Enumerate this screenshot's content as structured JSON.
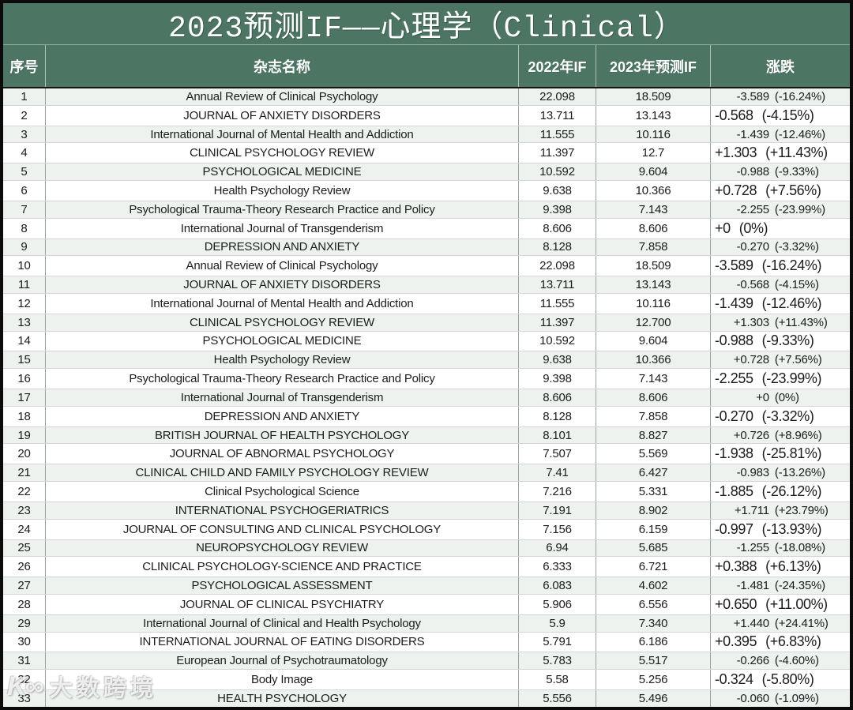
{
  "title": "2023预测IF——心理学（Clinical）",
  "header": {
    "index": "序号",
    "journal": "杂志名称",
    "if_2022": "2022年IF",
    "if_2023": "2023年预测IF",
    "change": "涨跌"
  },
  "watermark": {
    "logo": "K∞",
    "text": "大数跨境"
  },
  "colors": {
    "band_green": "#4c7564",
    "stripe": "#edf2ef",
    "outer_border": "#0b0b0b",
    "row_line": "#d2d7d4",
    "column_line": "#9ba3a0"
  },
  "row_fields": [
    "index",
    "journal_name",
    "if_2022",
    "if_2023_predicted",
    "change_value",
    "change_percent"
  ],
  "rows": [
    [
      "1",
      "Annual Review of Clinical Psychology",
      "22.098",
      "18.509",
      "-3.589",
      "(-16.24%)"
    ],
    [
      "2",
      "JOURNAL OF ANXIETY DISORDERS",
      "13.711",
      "13.143",
      "-0.568",
      "(-4.15%)"
    ],
    [
      "3",
      "International Journal of Mental Health and Addiction",
      "11.555",
      "10.116",
      "-1.439",
      "(-12.46%)"
    ],
    [
      "4",
      "CLINICAL PSYCHOLOGY REVIEW",
      "11.397",
      "12.7",
      "+1.303",
      "(+11.43%)"
    ],
    [
      "5",
      "PSYCHOLOGICAL MEDICINE",
      "10.592",
      "9.604",
      "-0.988",
      "(-9.33%)"
    ],
    [
      "6",
      "Health Psychology Review",
      "9.638",
      "10.366",
      "+0.728",
      "(+7.56%)"
    ],
    [
      "7",
      "Psychological Trauma-Theory Research Practice and Policy",
      "9.398",
      "7.143",
      "-2.255",
      "(-23.99%)"
    ],
    [
      "8",
      "International Journal of Transgenderism",
      "8.606",
      "8.606",
      "+0",
      "(0%)"
    ],
    [
      "9",
      "DEPRESSION AND ANXIETY",
      "8.128",
      "7.858",
      "-0.270",
      "(-3.32%)"
    ],
    [
      "10",
      "Annual Review of Clinical Psychology",
      "22.098",
      "18.509",
      "-3.589",
      "(-16.24%)"
    ],
    [
      "11",
      "JOURNAL OF ANXIETY DISORDERS",
      "13.711",
      "13.143",
      "-0.568",
      "(-4.15%)"
    ],
    [
      "12",
      "International Journal of Mental Health and Addiction",
      "11.555",
      "10.116",
      "-1.439",
      "(-12.46%)"
    ],
    [
      "13",
      "CLINICAL PSYCHOLOGY REVIEW",
      "11.397",
      "12.700",
      "+1.303",
      "(+11.43%)"
    ],
    [
      "14",
      "PSYCHOLOGICAL MEDICINE",
      "10.592",
      "9.604",
      "-0.988",
      "(-9.33%)"
    ],
    [
      "15",
      "Health Psychology Review",
      "9.638",
      "10.366",
      "+0.728",
      "(+7.56%)"
    ],
    [
      "16",
      "Psychological Trauma-Theory Research Practice and Policy",
      "9.398",
      "7.143",
      "-2.255",
      "(-23.99%)"
    ],
    [
      "17",
      "International Journal of Transgenderism",
      "8.606",
      "8.606",
      "+0",
      "(0%)"
    ],
    [
      "18",
      "DEPRESSION AND ANXIETY",
      "8.128",
      "7.858",
      "-0.270",
      "(-3.32%)"
    ],
    [
      "19",
      "BRITISH JOURNAL OF HEALTH PSYCHOLOGY",
      "8.101",
      "8.827",
      "+0.726",
      "(+8.96%)"
    ],
    [
      "20",
      "JOURNAL OF ABNORMAL PSYCHOLOGY",
      "7.507",
      "5.569",
      "-1.938",
      "(-25.81%)"
    ],
    [
      "21",
      "CLINICAL CHILD AND FAMILY PSYCHOLOGY REVIEW",
      "7.41",
      "6.427",
      "-0.983",
      "(-13.26%)"
    ],
    [
      "22",
      "Clinical Psychological Science",
      "7.216",
      "5.331",
      "-1.885",
      "(-26.12%)"
    ],
    [
      "23",
      "INTERNATIONAL PSYCHOGERIATRICS",
      "7.191",
      "8.902",
      "+1.711",
      "(+23.79%)"
    ],
    [
      "24",
      "JOURNAL OF CONSULTING AND CLINICAL PSYCHOLOGY",
      "7.156",
      "6.159",
      "-0.997",
      "(-13.93%)"
    ],
    [
      "25",
      "NEUROPSYCHOLOGY REVIEW",
      "6.94",
      "5.685",
      "-1.255",
      "(-18.08%)"
    ],
    [
      "26",
      "CLINICAL PSYCHOLOGY-SCIENCE AND PRACTICE",
      "6.333",
      "6.721",
      "+0.388",
      "(+6.13%)"
    ],
    [
      "27",
      "PSYCHOLOGICAL ASSESSMENT",
      "6.083",
      "4.602",
      "-1.481",
      "(-24.35%)"
    ],
    [
      "28",
      "JOURNAL OF CLINICAL PSYCHIATRY",
      "5.906",
      "6.556",
      "+0.650",
      "(+11.00%)"
    ],
    [
      "29",
      "International Journal of Clinical and Health Psychology",
      "5.9",
      "7.340",
      "+1.440",
      "(+24.41%)"
    ],
    [
      "30",
      "INTERNATIONAL JOURNAL OF EATING DISORDERS",
      "5.791",
      "6.186",
      "+0.395",
      "(+6.83%)"
    ],
    [
      "31",
      "European Journal of Psychotraumatology",
      "5.783",
      "5.517",
      "-0.266",
      "(-4.60%)"
    ],
    [
      "32",
      "Body Image",
      "5.58",
      "5.256",
      "-0.324",
      "(-5.80%)"
    ],
    [
      "33",
      "HEALTH PSYCHOLOGY",
      "5.556",
      "5.496",
      "-0.060",
      "(-1.09%)"
    ]
  ]
}
